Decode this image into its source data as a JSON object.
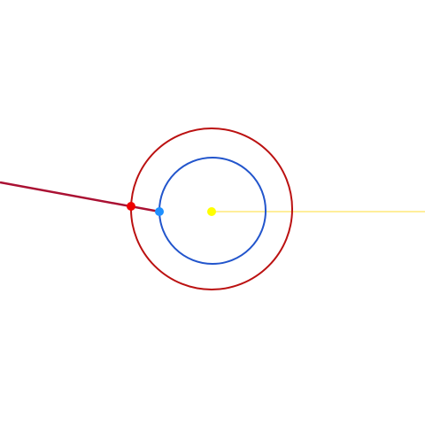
{
  "diagram": {
    "background_color": "#ffffff",
    "sun": {
      "name": "sun-body",
      "color": "#ffff00"
    },
    "inner_orbit": {
      "name": "earth-orbit",
      "color": "#2255cc"
    },
    "outer_orbit": {
      "name": "mars-orbit",
      "color": "#bb1111"
    },
    "inner_body": {
      "name": "earth-body",
      "color": "#1e90ff"
    },
    "outer_body": {
      "name": "mars-body",
      "color": "#ee0000"
    },
    "sun_line": {
      "name": "sun-earth-line",
      "color": "#ffe97a"
    },
    "sight_line": {
      "name": "earth-mars-sight-line",
      "color": "#aa1133"
    }
  }
}
